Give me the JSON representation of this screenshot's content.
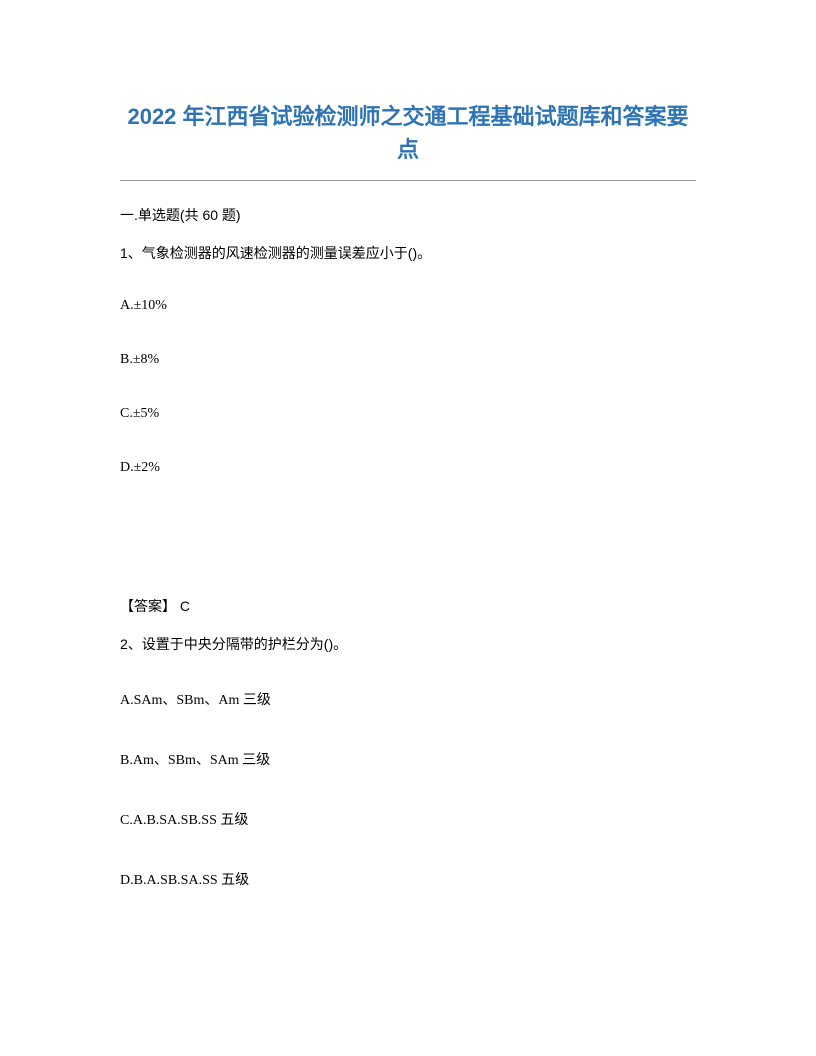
{
  "title": "2022 年江西省试验检测师之交通工程基础试题库和答案要点",
  "section_header": "一.单选题(共 60 题)",
  "question1": {
    "text": "1、气象检测器的风速检测器的测量误差应小于()。",
    "options": {
      "a": "A.±10%",
      "b": "B.±8%",
      "c": "C.±5%",
      "d": "D.±2%"
    },
    "answer_label": "【答案】",
    "answer_value": " C"
  },
  "question2": {
    "text": "2、设置于中央分隔带的护栏分为()。",
    "options": {
      "a": "A.SAm、SBm、Am 三级",
      "b": "B.Am、SBm、SAm 三级",
      "c": "C.A.B.SA.SB.SS 五级",
      "d": "D.B.A.SB.SA.SS 五级"
    }
  }
}
